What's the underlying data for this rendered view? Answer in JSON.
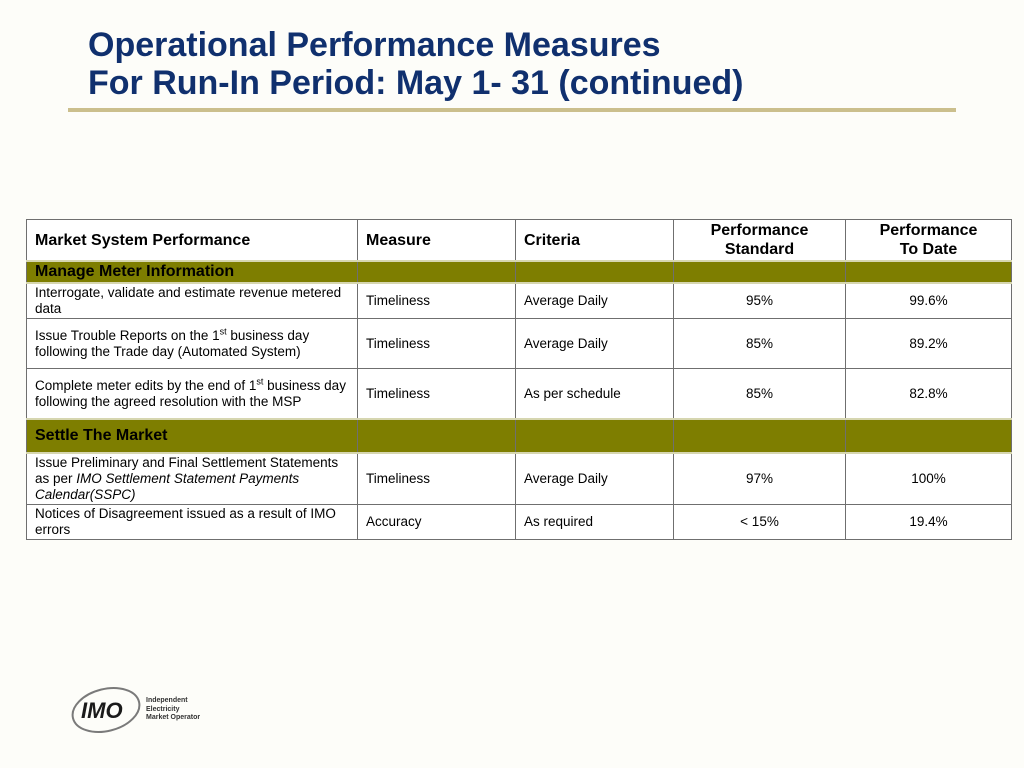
{
  "title": {
    "line1": "Operational Performance Measures",
    "line2": "For Run-In Period: May 1- 31 (continued)"
  },
  "table": {
    "headers": {
      "market": "Market System Performance",
      "measure": "Measure",
      "criteria": "Criteria",
      "standard_l1": "Performance",
      "standard_l2": "Standard",
      "todate_l1": "Performance",
      "todate_l2": "To Date"
    },
    "section1": "Manage Meter Information",
    "rows1": [
      {
        "desc": "Interrogate, validate and estimate revenue metered data",
        "measure": "Timeliness",
        "criteria": "Average Daily",
        "standard": "95%",
        "todate": "99.6%"
      },
      {
        "desc_a": "Issue Trouble Reports on  the 1",
        "desc_sup": "st",
        "desc_b": " business day following the Trade day (Automated System)",
        "measure": "Timeliness",
        "criteria": "Average Daily",
        "standard": "85%",
        "todate": "89.2%"
      },
      {
        "desc_a": "Complete meter edits by the end of 1",
        "desc_sup": "st",
        "desc_b": " business day following the agreed resolution with the MSP",
        "measure": "Timeliness",
        "criteria": "As per schedule",
        "standard": "85%",
        "todate": "82.8%"
      }
    ],
    "section2": "Settle The Market",
    "rows2": [
      {
        "desc_a": "Issue Preliminary and Final Settlement Statements as per ",
        "desc_italic": "IMO Settlement Statement Payments Calendar(SSPC)",
        "measure": "Timeliness",
        "criteria": "Average Daily",
        "standard": "97%",
        "todate": "100%"
      },
      {
        "desc": "Notices of Disagreement issued as a result of IMO errors",
        "measure": "Accuracy",
        "criteria": "As required",
        "standard": "< 15%",
        "todate": "19.4%"
      }
    ]
  },
  "logo": {
    "mark": "IMO",
    "line1": "Independent",
    "line2": "Electricity",
    "line3": "Market Operator"
  },
  "colors": {
    "title": "#10306e",
    "rule": "#cbbf8d",
    "section_fill": "#7e7e00",
    "background": "#fdfdf9"
  }
}
